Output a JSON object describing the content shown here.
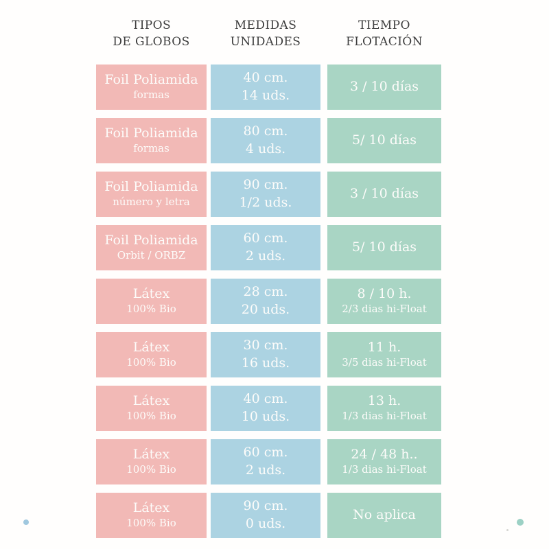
{
  "headers": [
    {
      "line1": "TIPOS",
      "line2": "DE GLOBOS"
    },
    {
      "line1": "MEDIDAS",
      "line2": "UNIDADES"
    },
    {
      "line1": "TIEMPO",
      "line2": "FLOTACIÓN"
    }
  ],
  "rows": [
    {
      "tipo1": "Foil Poliamida",
      "tipo2": "formas",
      "med1": "40 cm.",
      "med2": "14 uds.",
      "tie1": "3 / 10 días",
      "tie2": ""
    },
    {
      "tipo1": "Foil Poliamida",
      "tipo2": "formas",
      "med1": "80 cm.",
      "med2": "4 uds.",
      "tie1": "5/ 10 días",
      "tie2": ""
    },
    {
      "tipo1": "Foil Poliamida",
      "tipo2": "número y letra",
      "med1": "90 cm.",
      "med2": "1/2 uds.",
      "tie1": "3 / 10 días",
      "tie2": ""
    },
    {
      "tipo1": "Foil Poliamida",
      "tipo2": "Orbit / ORBZ",
      "med1": "60 cm.",
      "med2": "2 uds.",
      "tie1": "5/ 10 días",
      "tie2": ""
    },
    {
      "tipo1": "Látex",
      "tipo2": "100% Bio",
      "med1": "28 cm.",
      "med2": "20 uds.",
      "tie1": "8 / 10 h.",
      "tie2": "2/3 dias hi-Float"
    },
    {
      "tipo1": "Látex",
      "tipo2": "100% Bio",
      "med1": "30 cm.",
      "med2": "16 uds.",
      "tie1": "11 h.",
      "tie2": "3/5 dias hi-Float"
    },
    {
      "tipo1": "Látex",
      "tipo2": "100% Bio",
      "med1": "40 cm.",
      "med2": "10 uds.",
      "tie1": "13 h.",
      "tie2": "1/3 dias hi-Float"
    },
    {
      "tipo1": "Látex",
      "tipo2": "100% Bio",
      "med1": "60 cm.",
      "med2": "2 uds.",
      "tie1": "24 / 48 h..",
      "tie2": "1/3 dias hi-Float"
    },
    {
      "tipo1": "Látex",
      "tipo2": "100% Bio",
      "med1": "90 cm.",
      "med2": "0 uds.",
      "tie1": "No aplica",
      "tie2": ""
    }
  ],
  "colors": {
    "background": "#fffefd",
    "pink_cell": "#f2b9b6",
    "blue_cell": "#acd3e2",
    "green_cell": "#a9d5c4",
    "header_text": "#3e3e3e",
    "cell_text": "#fdfcfa",
    "dot_left": "#a0c8df",
    "dot_right": "#9cd1c5"
  },
  "chart_data": {
    "type": "table",
    "title": "",
    "columns": [
      "TIPOS DE GLOBOS",
      "MEDIDAS UNIDADES",
      "TIEMPO FLOTACIÓN"
    ],
    "rows": [
      [
        "Foil Poliamida formas",
        "40 cm. 14 uds.",
        "3 / 10 días"
      ],
      [
        "Foil Poliamida formas",
        "80 cm. 4 uds.",
        "5/ 10 días"
      ],
      [
        "Foil Poliamida número y letra",
        "90 cm. 1/2 uds.",
        "3 / 10 días"
      ],
      [
        "Foil Poliamida Orbit / ORBZ",
        "60 cm. 2 uds.",
        "5/ 10 días"
      ],
      [
        "Látex 100% Bio",
        "28 cm. 20 uds.",
        "8 / 10 h. 2/3 dias hi-Float"
      ],
      [
        "Látex 100% Bio",
        "30 cm. 16 uds.",
        "11 h. 3/5 dias hi-Float"
      ],
      [
        "Látex 100% Bio",
        "40 cm. 10 uds.",
        "13 h. 1/3 dias hi-Float"
      ],
      [
        "Látex 100% Bio",
        "60 cm. 2 uds.",
        "24 / 48 h.. 1/3 dias hi-Float"
      ],
      [
        "Látex 100% Bio",
        "90 cm. 0 uds.",
        "No aplica"
      ]
    ]
  }
}
